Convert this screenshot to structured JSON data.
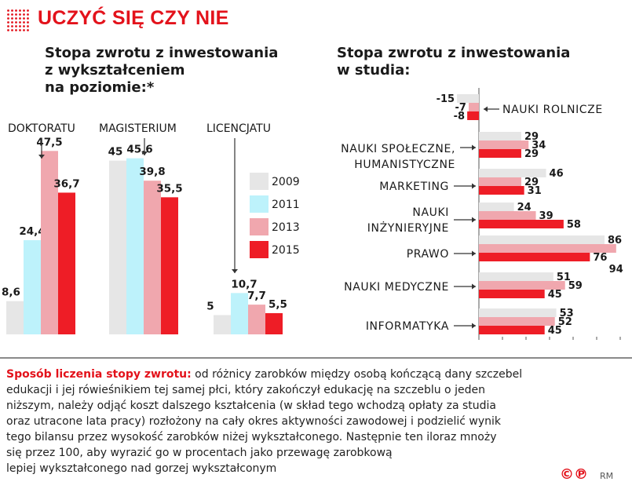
{
  "title": "UCZYĆ SIĘ CZY NIE",
  "left_subtitle": [
    "Stopa zwrotu z inwestowania",
    "z wykształceniem",
    "na poziomie:*"
  ],
  "right_subtitle": [
    "Stopa zwrotu z inwestowania",
    "w studia:"
  ],
  "footnote": {
    "label": "Sposób liczenia stopy zwrotu:",
    "lines": [
      " od różnicy zarobków między osobą kończącą dany szczebel",
      "edukacji i jej rówieśnikiem tej samej płci, który zakończył edukację na szczeblu o jeden",
      "niższym, należy odjąć koszt dalszego kształcenia (w skład tego wchodzą opłaty za studia",
      "oraz utracone lata pracy) rozłożony na cały okres aktywności zawodowej i podzielić wynik",
      "tego bilansu przez wysokość zarobków niżej wykształconego. Następnie ten iloraz mnoży",
      "się przez 100, aby wyrazić go w procentach jako przewagę zarobkową",
      "lepiej wykształconego nad gorzej wykształconym"
    ]
  },
  "credit": {
    "logo": "©℗",
    "author": "RM"
  },
  "colors": {
    "2009": "#e6e6e6",
    "2011": "#bdf2fb",
    "2013": "#f0a7ae",
    "2015": "#ee1d26",
    "accent": "#e3121b"
  },
  "chart_data": [
    {
      "type": "bar",
      "title": "Stopa zwrotu z inwestowania z wykształceniem na poziomie:*",
      "categories": [
        "DOKTORATU",
        "MAGISTERIUM",
        "LICENCJATU"
      ],
      "series": [
        {
          "name": "2009",
          "values": [
            8.6,
            45,
            5
          ]
        },
        {
          "name": "2011",
          "values": [
            24.4,
            45.6,
            10.7
          ]
        },
        {
          "name": "2013",
          "values": [
            47.5,
            39.8,
            7.7
          ]
        },
        {
          "name": "2015",
          "values": [
            36.7,
            35.5,
            5.5
          ]
        }
      ],
      "value_labels": [
        [
          "8,6",
          "24,4",
          "47,5",
          "36,7"
        ],
        [
          "45",
          "45,6",
          "39,8",
          "35,5"
        ],
        [
          "5",
          "10,7",
          "7,7",
          "5,5"
        ]
      ],
      "legend": [
        "2009",
        "2011",
        "2013",
        "2015"
      ],
      "legend_position": "right",
      "grid": false
    },
    {
      "type": "bar",
      "orientation": "horizontal",
      "title": "Stopa zwrotu z inwestowania w studia:",
      "categories": [
        "NAUKI ROLNICZE",
        "NAUKI SPOŁECZNE, HUMANISTYCZNE",
        "MARKETING",
        "NAUKI INŻYNIERYJNE",
        "PRAWO",
        "NAUKI MEDYCZNE",
        "INFORMATYKA"
      ],
      "series": [
        {
          "name": "2009",
          "values": [
            -15,
            29,
            46,
            24,
            86,
            51,
            53
          ]
        },
        {
          "name": "2013",
          "values": [
            -7,
            34,
            29,
            39,
            94,
            59,
            52
          ]
        },
        {
          "name": "2015",
          "values": [
            -8,
            29,
            31,
            58,
            76,
            45,
            45
          ]
        }
      ],
      "value_labels": [
        [
          "-15",
          "-7",
          "-8"
        ],
        [
          "29",
          "34",
          "29"
        ],
        [
          "46",
          "29",
          "31"
        ],
        [
          "24",
          "39",
          "58"
        ],
        [
          "86",
          "94",
          "76"
        ],
        [
          "51",
          "59",
          "45"
        ],
        [
          "53",
          "52",
          "45"
        ]
      ],
      "grid": false
    }
  ]
}
